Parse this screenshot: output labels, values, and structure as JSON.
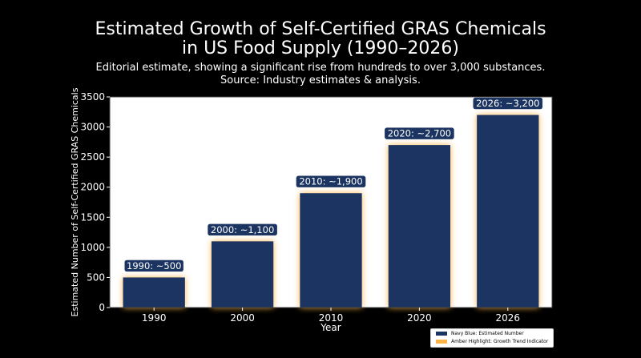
{
  "chart_data": {
    "type": "bar",
    "title_line1": "Estimated Growth of Self-Certified GRAS Chemicals",
    "title_line2": "in US Food Supply (1990–2026)",
    "subtitle_line1": "Editorial estimate, showing a significant rise from hundreds to over 3,000 substances.",
    "subtitle_line2": "Source: Industry estimates & analysis.",
    "xlabel": "Year",
    "ylabel": "Estimated Number of Self-Certified GRAS Chemicals",
    "categories": [
      "1990",
      "2000",
      "2010",
      "2020",
      "2026"
    ],
    "values": [
      500,
      1100,
      1900,
      2700,
      3200
    ],
    "data_labels": [
      "1990: ~500",
      "2000: ~1,100",
      "2010: ~1,900",
      "2020: ~2,700",
      "2026: ~3,200"
    ],
    "ylim": [
      0,
      3500
    ],
    "yticks": [
      0,
      500,
      1000,
      1500,
      2000,
      2500,
      3000,
      3500
    ],
    "grid": false,
    "legend_position": "bottom-right",
    "legend": [
      {
        "label": "Navy Blue: Estimated Number",
        "color": "#1b3461"
      },
      {
        "label": "Amber Highlight: Growth Trend Indicator",
        "color": "#ffb347"
      }
    ],
    "colors": {
      "bar": "#1b3461",
      "glow": "#ffb347",
      "label_box": "#1b3461",
      "plot_bg": "#ffffff",
      "page_bg": "#000000"
    }
  }
}
